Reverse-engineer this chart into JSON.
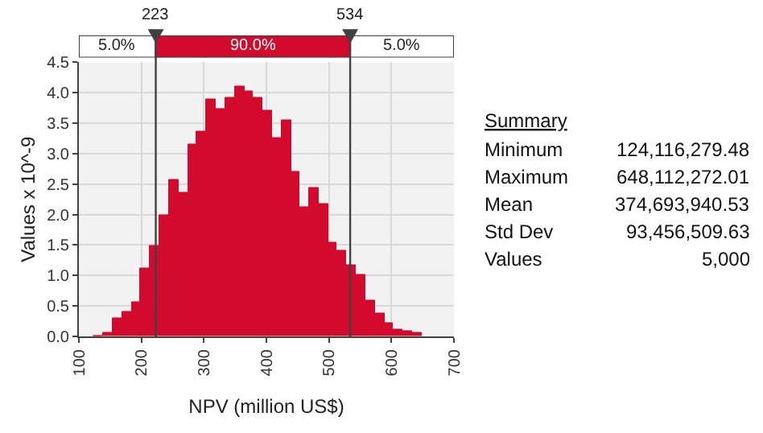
{
  "chart_data": {
    "type": "histogram",
    "xlabel": "NPV (million US$)",
    "ylabel": "Values x 10^-9",
    "bins": [
      124,
      139,
      154,
      169,
      184,
      199,
      214,
      229,
      244,
      259,
      274,
      289,
      304,
      319,
      334,
      349,
      364,
      379,
      394,
      409,
      424,
      439,
      454,
      468,
      483,
      498,
      513,
      528,
      543,
      558,
      573,
      588,
      603,
      618,
      633,
      648
    ],
    "values": [
      0.02,
      0.05,
      0.3,
      0.4,
      0.56,
      1.12,
      1.5,
      2.0,
      2.57,
      2.37,
      3.15,
      3.37,
      3.88,
      3.73,
      3.93,
      4.1,
      4.03,
      3.92,
      3.7,
      3.27,
      3.55,
      2.7,
      2.13,
      2.44,
      2.18,
      1.55,
      1.4,
      1.18,
      1.0,
      0.6,
      0.37,
      0.22,
      0.11,
      0.09,
      0.05
    ],
    "color": "#d20a2e",
    "xlim": [
      100,
      700
    ],
    "xticks": [
      100,
      200,
      300,
      400,
      500,
      600,
      700
    ],
    "ylim": [
      0,
      4.5
    ],
    "yticks": [
      {
        "value": 0,
        "label": "0.0"
      },
      {
        "value": 0.5,
        "label": "0.5"
      },
      {
        "value": 1,
        "label": "1.0"
      },
      {
        "value": 1.5,
        "label": "1.5"
      },
      {
        "value": 2,
        "label": "2.0"
      },
      {
        "value": 2.5,
        "label": "2.5"
      },
      {
        "value": 3,
        "label": "3.0"
      },
      {
        "value": 3.5,
        "label": "3.5"
      },
      {
        "value": 4,
        "label": "4.0"
      },
      {
        "value": 4.5,
        "label": "4.5"
      }
    ],
    "grid": true,
    "ref_lines": [
      {
        "axis": "x",
        "value": 223,
        "label": "223",
        "color": "#404040"
      },
      {
        "axis": "x",
        "value": 534,
        "label": "534",
        "color": "#404040"
      }
    ],
    "annotations": [
      "5.0%",
      "90.0%",
      "5.0%",
      "Summary",
      "Minimum",
      "124,116,279.48",
      "Maximum",
      "648,112,272.01",
      "Mean",
      "374,693,940.53",
      "Std Dev",
      "93,456,509.63",
      "Values",
      "5,000"
    ]
  }
}
